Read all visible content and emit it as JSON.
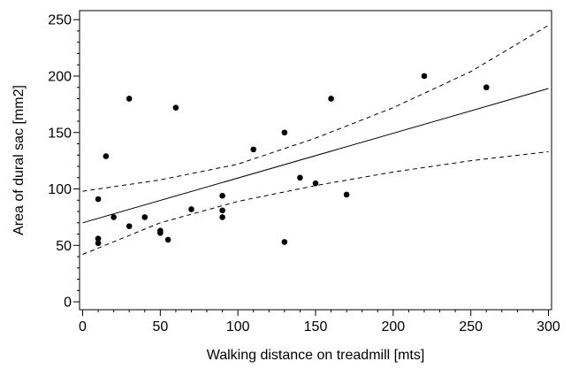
{
  "chart_data": {
    "type": "scatter",
    "title": "",
    "xlabel": "Walking distance on treadmill [mts]",
    "ylabel": "Area of dural sac [mm2]",
    "xlim": [
      -2,
      302
    ],
    "ylim": [
      -7,
      258
    ],
    "x_ticks": [
      0,
      50,
      100,
      150,
      200,
      250,
      300
    ],
    "y_ticks": [
      0,
      50,
      100,
      150,
      200,
      250
    ],
    "x_minor_step": 10,
    "y_minor_step": 10,
    "grid": false,
    "legend": "none",
    "points": [
      {
        "x": 10,
        "y": 91
      },
      {
        "x": 10,
        "y": 56
      },
      {
        "x": 10,
        "y": 52
      },
      {
        "x": 15,
        "y": 129
      },
      {
        "x": 20,
        "y": 75
      },
      {
        "x": 30,
        "y": 180
      },
      {
        "x": 30,
        "y": 67
      },
      {
        "x": 40,
        "y": 75
      },
      {
        "x": 50,
        "y": 63
      },
      {
        "x": 50,
        "y": 61
      },
      {
        "x": 55,
        "y": 55
      },
      {
        "x": 60,
        "y": 172
      },
      {
        "x": 70,
        "y": 82
      },
      {
        "x": 90,
        "y": 94
      },
      {
        "x": 90,
        "y": 81
      },
      {
        "x": 90,
        "y": 75
      },
      {
        "x": 110,
        "y": 135
      },
      {
        "x": 130,
        "y": 150
      },
      {
        "x": 130,
        "y": 53
      },
      {
        "x": 140,
        "y": 110
      },
      {
        "x": 150,
        "y": 105
      },
      {
        "x": 160,
        "y": 180
      },
      {
        "x": 170,
        "y": 95
      },
      {
        "x": 220,
        "y": 200
      },
      {
        "x": 260,
        "y": 190
      }
    ],
    "fit_line": {
      "style": "solid",
      "x": [
        0,
        300
      ],
      "y": [
        70,
        189
      ]
    },
    "confidence_upper": {
      "style": "dashed",
      "x": [
        0,
        50,
        100,
        150,
        200,
        250,
        300
      ],
      "y": [
        98,
        108,
        122,
        145,
        172,
        204,
        245
      ]
    },
    "confidence_lower": {
      "style": "dashed",
      "x": [
        0,
        50,
        100,
        150,
        200,
        250,
        300
      ],
      "y": [
        42,
        70,
        89,
        103,
        115,
        125,
        133
      ]
    },
    "colors": {
      "marker": "#000000",
      "line": "#000000",
      "frame": "#000000"
    }
  }
}
